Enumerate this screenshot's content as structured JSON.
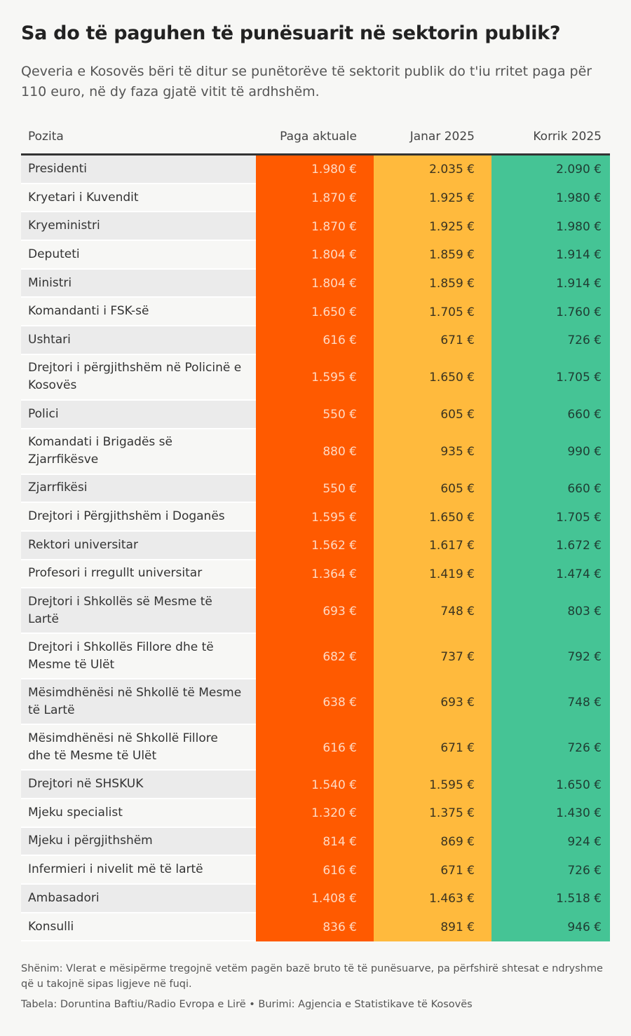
{
  "title": "Sa do të paguhen të punësuarit në sektorin publik?",
  "subtitle": "Qeveria e Kosovës bëri të ditur se punëtorëve të sektorit publik do t'iu rritet paga për 110 euro, në dy faza gjatë vitit të ardhshëm.",
  "note": "Shënim: Vlerat e mësipërme tregojnë vetëm pagën bazë bruto të të punësuarve, pa përfshirë shtesat e ndryshme që u takojnë sipas ligjeve në fuqi.",
  "source": "Tabela: Doruntina Baftiu/Radio Evropa e Lirë • Burimi: Agjencia e Statistikave të Kosovës",
  "colors": {
    "current": "#ff5a00",
    "jan2025": "#ffba3d",
    "jul2025": "#45c495"
  },
  "chart_data": {
    "type": "table",
    "columns": [
      "Pozita",
      "Paga aktuale",
      "Janar 2025",
      "Korrik 2025"
    ],
    "rows": [
      [
        "Presidenti",
        "1.980 €",
        "2.035 €",
        "2.090 €"
      ],
      [
        "Kryetari i Kuvendit",
        "1.870 €",
        "1.925 €",
        "1.980 €"
      ],
      [
        "Kryeministri",
        "1.870 €",
        "1.925 €",
        "1.980 €"
      ],
      [
        "Deputeti",
        "1.804 €",
        "1.859 €",
        "1.914 €"
      ],
      [
        "Ministri",
        "1.804 €",
        "1.859 €",
        "1.914 €"
      ],
      [
        "Komandanti i FSK-së",
        "1.650 €",
        "1.705 €",
        "1.760 €"
      ],
      [
        "Ushtari",
        "616 €",
        "671 €",
        "726 €"
      ],
      [
        "Drejtori i përgjithshëm në Policinë e Kosovës",
        "1.595 €",
        "1.650 €",
        "1.705 €"
      ],
      [
        "Polici",
        "550 €",
        "605 €",
        "660 €"
      ],
      [
        "Komandati i Brigadës së Zjarrfikësve",
        "880 €",
        "935 €",
        "990 €"
      ],
      [
        "Zjarrfikësi",
        "550 €",
        "605 €",
        "660 €"
      ],
      [
        "Drejtori i Përgjithshëm i Doganës",
        "1.595 €",
        "1.650 €",
        "1.705 €"
      ],
      [
        "Rektori universitar",
        "1.562 €",
        "1.617 €",
        "1.672 €"
      ],
      [
        "Profesori i rregullt universitar",
        "1.364 €",
        "1.419 €",
        "1.474 €"
      ],
      [
        "Drejtori i Shkollës së Mesme të Lartë",
        "693 €",
        "748 €",
        "803 €"
      ],
      [
        "Drejtori i Shkollës Fillore dhe të Mesme të Ulët",
        "682 €",
        "737 €",
        "792 €"
      ],
      [
        "Mësimdhënësi në Shkollë të Mesme të Lartë",
        "638 €",
        "693 €",
        "748 €"
      ],
      [
        "Mësimdhënësi në Shkollë Fillore dhe të Mesme të Ulët",
        "616 €",
        "671 €",
        "726 €"
      ],
      [
        "Drejtori në SHSKUK",
        "1.540 €",
        "1.595 €",
        "1.650 €"
      ],
      [
        "Mjeku specialist",
        "1.320 €",
        "1.375 €",
        "1.430 €"
      ],
      [
        "Mjeku i përgjithshëm",
        "814 €",
        "869 €",
        "924 €"
      ],
      [
        "Infermieri i nivelit më të lartë",
        "616 €",
        "671 €",
        "726 €"
      ],
      [
        "Ambasadori",
        "1.408 €",
        "1.463 €",
        "1.518 €"
      ],
      [
        "Konsulli",
        "836 €",
        "891 €",
        "946 €"
      ]
    ]
  }
}
